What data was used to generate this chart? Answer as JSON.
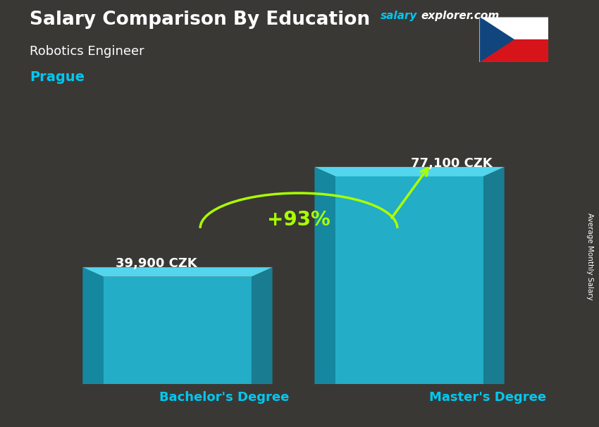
{
  "title": "Salary Comparison By Education",
  "subtitle_job": "Robotics Engineer",
  "subtitle_city": "Prague",
  "watermark_salary": "salary",
  "watermark_explorer": "explorer.com",
  "ylabel": "Average Monthly Salary",
  "categories": [
    "Bachelor's Degree",
    "Master's Degree"
  ],
  "values": [
    39900,
    77100
  ],
  "value_labels": [
    "39,900 CZK",
    "77,100 CZK"
  ],
  "pct_change": "+93%",
  "bar_front_color": "#1ec8e8",
  "bar_left_color": "#0d9ab8",
  "bar_right_color": "#0d9ab8",
  "bar_top_color": "#55e0f8",
  "bg_color": "#3a3835",
  "title_color": "#ffffff",
  "job_color": "#ffffff",
  "city_color": "#00c8f0",
  "watermark_color_salary": "#00c8f0",
  "watermark_color_explorer": "#ffffff",
  "label_color": "#ffffff",
  "xticklabel_color": "#00c8f0",
  "pct_color": "#aaff00",
  "pct_arc_color": "#aaff00",
  "arrow_color": "#aaff00",
  "bar_width": 0.28,
  "ylim": [
    0,
    95000
  ],
  "bar_positions": [
    0.28,
    0.72
  ],
  "figsize": [
    8.5,
    6.06
  ],
  "dpi": 100
}
